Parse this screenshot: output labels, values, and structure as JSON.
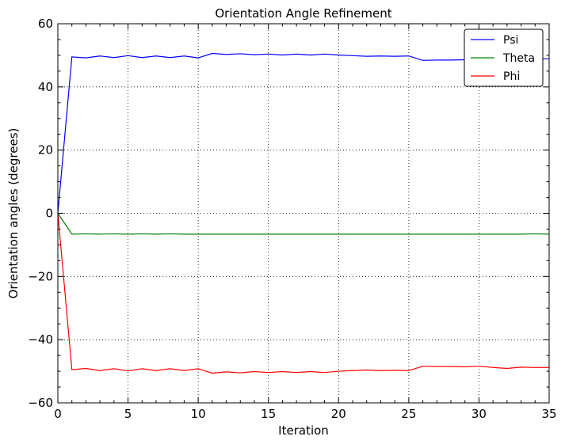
{
  "chart_data": {
    "type": "line",
    "title": "Orientation Angle Refinement",
    "xlabel": "Iteration",
    "ylabel": "Orientation angles (degrees)",
    "xlim": [
      0,
      35
    ],
    "ylim": [
      -60,
      60
    ],
    "xticks": [
      0,
      5,
      10,
      15,
      20,
      25,
      30,
      35
    ],
    "yticks": [
      -60,
      -40,
      -20,
      0,
      20,
      40,
      60
    ],
    "ytick_labels": [
      "−60",
      "−40",
      "−20",
      "0",
      "20",
      "40",
      "60"
    ],
    "grid": true,
    "legend_position": "top-right",
    "x": [
      0,
      1,
      2,
      3,
      4,
      5,
      6,
      7,
      8,
      9,
      10,
      11,
      12,
      13,
      14,
      15,
      16,
      17,
      18,
      19,
      20,
      21,
      22,
      23,
      24,
      25,
      26,
      27,
      28,
      29,
      30,
      31,
      32,
      33,
      34,
      35
    ],
    "series": [
      {
        "name": "Psi",
        "color": "#0000ff",
        "values": [
          0,
          49.5,
          49.2,
          49.8,
          49.3,
          49.9,
          49.3,
          49.8,
          49.3,
          49.8,
          49.2,
          50.6,
          50.3,
          50.5,
          50.2,
          50.4,
          50.1,
          50.4,
          50.1,
          50.4,
          50.1,
          49.9,
          49.7,
          49.8,
          49.7,
          49.8,
          48.4,
          48.5,
          48.5,
          48.6,
          48.9,
          48.8,
          48.8,
          48.9,
          48.9,
          48.9
        ]
      },
      {
        "name": "Theta",
        "color": "#008000",
        "values": [
          0,
          -6.6,
          -6.5,
          -6.6,
          -6.5,
          -6.6,
          -6.5,
          -6.6,
          -6.5,
          -6.6,
          -6.6,
          -6.6,
          -6.6,
          -6.6,
          -6.6,
          -6.6,
          -6.6,
          -6.6,
          -6.6,
          -6.6,
          -6.6,
          -6.6,
          -6.6,
          -6.6,
          -6.6,
          -6.6,
          -6.6,
          -6.6,
          -6.6,
          -6.6,
          -6.6,
          -6.6,
          -6.6,
          -6.6,
          -6.5,
          -6.6
        ]
      },
      {
        "name": "Phi",
        "color": "#ff0000",
        "values": [
          0,
          -49.5,
          -49.1,
          -49.8,
          -49.2,
          -49.9,
          -49.2,
          -49.8,
          -49.2,
          -49.8,
          -49.2,
          -50.6,
          -50.2,
          -50.5,
          -50.1,
          -50.4,
          -50.1,
          -50.4,
          -50.1,
          -50.4,
          -50.0,
          -49.8,
          -49.6,
          -49.8,
          -49.7,
          -49.8,
          -48.4,
          -48.5,
          -48.5,
          -48.6,
          -48.4,
          -48.8,
          -49.1,
          -48.7,
          -48.8,
          -48.8
        ]
      }
    ]
  }
}
